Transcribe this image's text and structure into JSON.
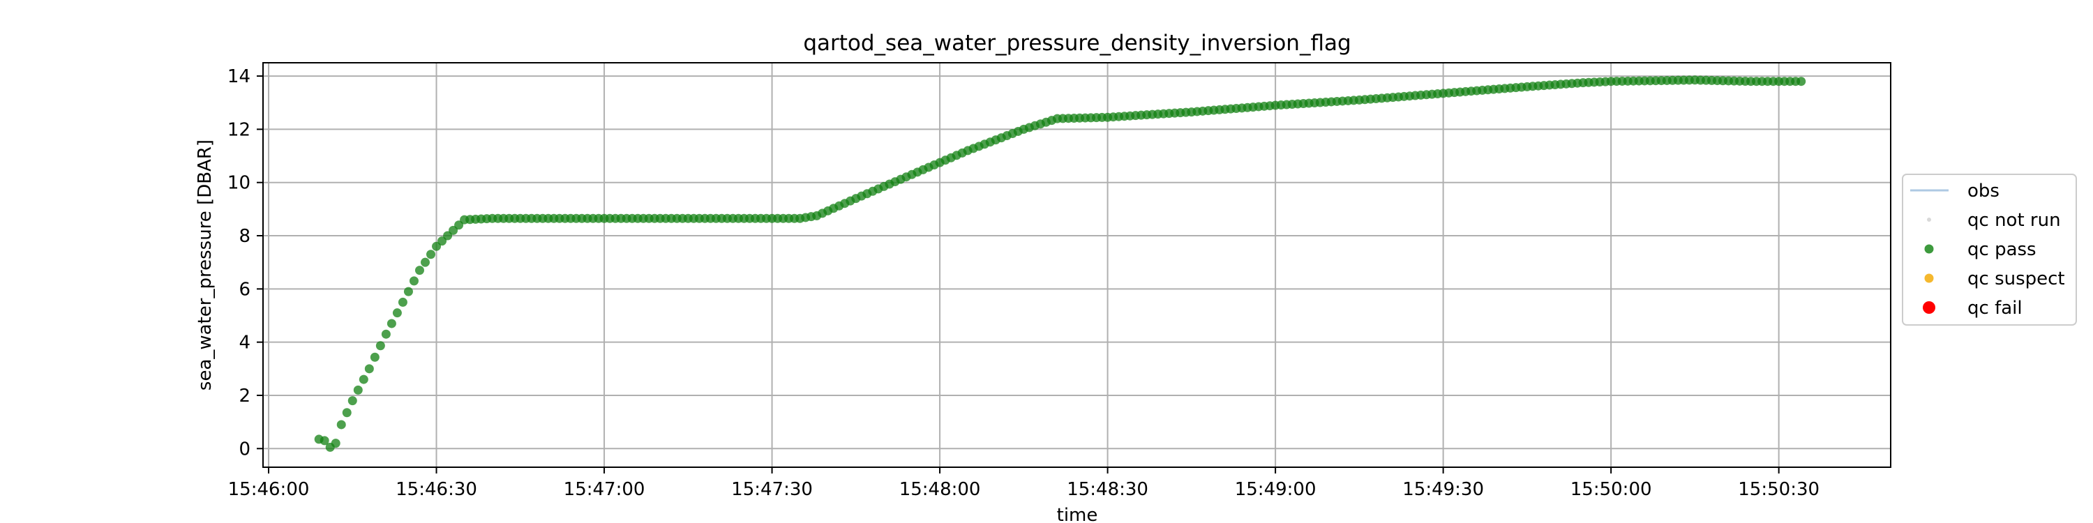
{
  "chart_data": {
    "type": "scatter",
    "title": "qartod_sea_water_pressure_density_inversion_flag",
    "xlabel": "time",
    "ylabel": "sea_water_pressure [DBAR]",
    "xlim": [
      "15:45:59",
      "15:50:50"
    ],
    "ylim": [
      -0.7,
      14.5
    ],
    "x_ticks": [
      "15:46:00",
      "15:46:30",
      "15:47:00",
      "15:47:30",
      "15:48:00",
      "15:48:30",
      "15:49:00",
      "15:49:30",
      "15:50:00",
      "15:50:30"
    ],
    "y_ticks": [
      0,
      2,
      4,
      6,
      8,
      10,
      12,
      14
    ],
    "grid": true,
    "legend_position": "center right, outside plot",
    "legend": [
      {
        "label": "obs",
        "kind": "line",
        "color": "#aec9e3"
      },
      {
        "label": "qc not run",
        "kind": "dot",
        "color": "#d9d9d9"
      },
      {
        "label": "qc pass",
        "kind": "dot",
        "color": "#3d9a3d"
      },
      {
        "label": "qc suspect",
        "kind": "dot",
        "color": "#f5b82e"
      },
      {
        "label": "qc fail",
        "kind": "dot",
        "color": "#ff0000"
      }
    ],
    "series": [
      {
        "name": "qc pass",
        "color": "#118011",
        "points": [
          [
            "15:46:09",
            0.35
          ],
          [
            "15:46:10",
            0.3
          ],
          [
            "15:46:11",
            0.05
          ],
          [
            "15:46:12",
            0.2
          ],
          [
            "15:46:13",
            0.9
          ],
          [
            "15:46:15",
            1.8
          ],
          [
            "15:46:18",
            3.0
          ],
          [
            "15:46:21",
            4.3
          ],
          [
            "15:46:24",
            5.5
          ],
          [
            "15:46:27",
            6.7
          ],
          [
            "15:46:30",
            7.6
          ],
          [
            "15:46:33",
            8.2
          ],
          [
            "15:46:35",
            8.6
          ],
          [
            "15:46:40",
            8.65
          ],
          [
            "15:47:00",
            8.65
          ],
          [
            "15:47:20",
            8.65
          ],
          [
            "15:47:35",
            8.65
          ],
          [
            "15:47:38",
            8.75
          ],
          [
            "15:47:45",
            9.4
          ],
          [
            "15:47:55",
            10.3
          ],
          [
            "15:48:05",
            11.2
          ],
          [
            "15:48:15",
            12.0
          ],
          [
            "15:48:21",
            12.4
          ],
          [
            "15:48:30",
            12.45
          ],
          [
            "15:48:45",
            12.65
          ],
          [
            "15:49:00",
            12.9
          ],
          [
            "15:49:15",
            13.1
          ],
          [
            "15:49:30",
            13.35
          ],
          [
            "15:49:45",
            13.6
          ],
          [
            "15:49:55",
            13.75
          ],
          [
            "15:50:00",
            13.8
          ],
          [
            "15:50:15",
            13.85
          ],
          [
            "15:50:25",
            13.8
          ],
          [
            "15:50:34",
            13.8
          ]
        ]
      }
    ]
  }
}
